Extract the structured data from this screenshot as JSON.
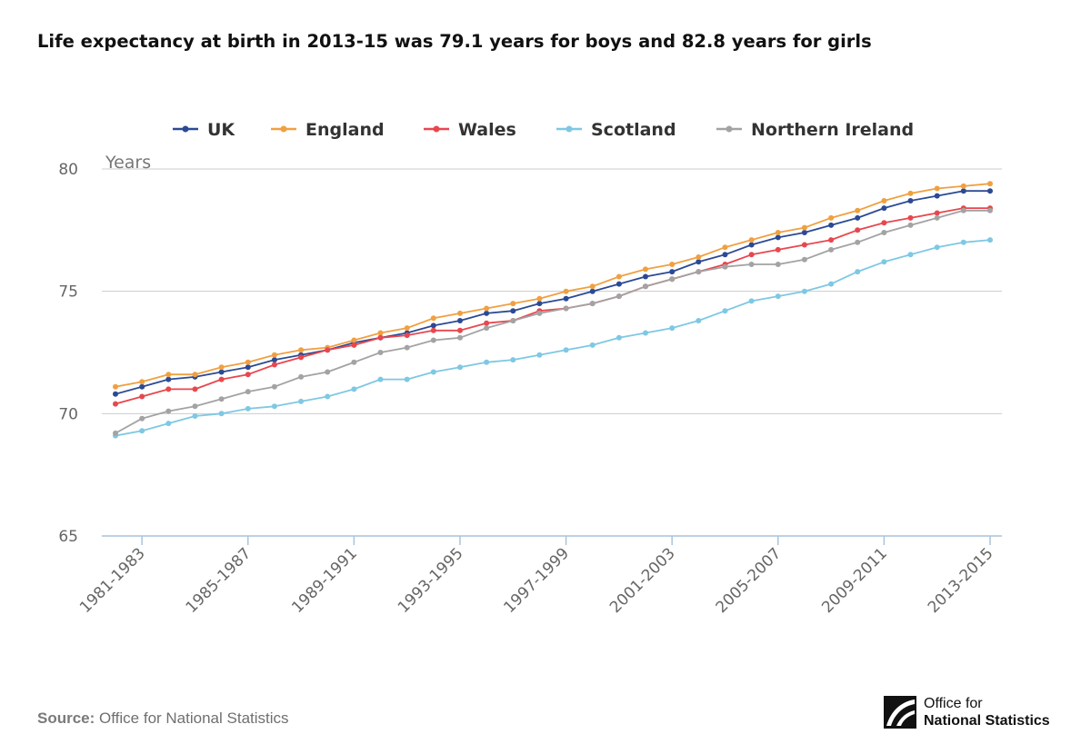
{
  "title": "Life expectancy at birth in 2013-15 was 79.1 years for boys and 82.8 years for girls",
  "source": {
    "label": "Source:",
    "text": "Office for National Statistics"
  },
  "logo": {
    "line1": "Office for",
    "line2": "National Statistics",
    "icon": "ons-logo-icon"
  },
  "chart_data": {
    "type": "line",
    "title": "",
    "xlabel": "",
    "ylabel": "Years",
    "ylim": [
      65,
      80
    ],
    "yticks": [
      65,
      70,
      75,
      80
    ],
    "grid": "horizontal",
    "legend_position": "top",
    "x": [
      "1980-1982",
      "1981-1983",
      "1982-1984",
      "1983-1985",
      "1984-1986",
      "1985-1987",
      "1986-1988",
      "1987-1989",
      "1988-1990",
      "1989-1991",
      "1990-1992",
      "1991-1993",
      "1992-1994",
      "1993-1995",
      "1994-1996",
      "1995-1997",
      "1996-1998",
      "1997-1999",
      "1998-2000",
      "1999-2001",
      "2000-2002",
      "2001-2003",
      "2002-2004",
      "2003-2005",
      "2004-2006",
      "2005-2007",
      "2006-2008",
      "2007-2009",
      "2008-2010",
      "2009-2011",
      "2010-2012",
      "2011-2013",
      "2012-2014",
      "2013-2015"
    ],
    "xtick_labels": [
      "1981-1983",
      "1985-1987",
      "1989-1991",
      "1993-1995",
      "1997-1999",
      "2001-2003",
      "2005-2007",
      "2009-2011",
      "2013-2015"
    ],
    "series": [
      {
        "name": "UK",
        "color": "#2b4a95",
        "values": [
          70.8,
          71.1,
          71.4,
          71.5,
          71.7,
          71.9,
          72.2,
          72.4,
          72.6,
          72.9,
          73.1,
          73.3,
          73.6,
          73.8,
          74.1,
          74.2,
          74.5,
          74.7,
          75.0,
          75.3,
          75.6,
          75.8,
          76.2,
          76.5,
          76.9,
          77.2,
          77.4,
          77.7,
          78.0,
          78.4,
          78.7,
          78.9,
          79.1,
          79.1
        ]
      },
      {
        "name": "England",
        "color": "#f0a040",
        "values": [
          71.1,
          71.3,
          71.6,
          71.6,
          71.9,
          72.1,
          72.4,
          72.6,
          72.7,
          73.0,
          73.3,
          73.5,
          73.9,
          74.1,
          74.3,
          74.5,
          74.7,
          75.0,
          75.2,
          75.6,
          75.9,
          76.1,
          76.4,
          76.8,
          77.1,
          77.4,
          77.6,
          78.0,
          78.3,
          78.7,
          79.0,
          79.2,
          79.3,
          79.4
        ]
      },
      {
        "name": "Wales",
        "color": "#e8474e",
        "values": [
          70.4,
          70.7,
          71.0,
          71.0,
          71.4,
          71.6,
          72.0,
          72.3,
          72.6,
          72.8,
          73.1,
          73.2,
          73.4,
          73.4,
          73.7,
          73.8,
          74.2,
          74.3,
          74.5,
          74.8,
          75.2,
          75.5,
          75.8,
          76.1,
          76.5,
          76.7,
          76.9,
          77.1,
          77.5,
          77.8,
          78.0,
          78.2,
          78.4,
          78.4
        ]
      },
      {
        "name": "Scotland",
        "color": "#7ec8e3",
        "values": [
          69.1,
          69.3,
          69.6,
          69.9,
          70.0,
          70.2,
          70.3,
          70.5,
          70.7,
          71.0,
          71.4,
          71.4,
          71.7,
          71.9,
          72.1,
          72.2,
          72.4,
          72.6,
          72.8,
          73.1,
          73.3,
          73.5,
          73.8,
          74.2,
          74.6,
          74.8,
          75.0,
          75.3,
          75.8,
          76.2,
          76.5,
          76.8,
          77.0,
          77.1
        ]
      },
      {
        "name": "Northern Ireland",
        "color": "#a3a3a3",
        "values": [
          69.2,
          69.8,
          70.1,
          70.3,
          70.6,
          70.9,
          71.1,
          71.5,
          71.7,
          72.1,
          72.5,
          72.7,
          73.0,
          73.1,
          73.5,
          73.8,
          74.1,
          74.3,
          74.5,
          74.8,
          75.2,
          75.5,
          75.8,
          76.0,
          76.1,
          76.1,
          76.3,
          76.7,
          77.0,
          77.4,
          77.7,
          78.0,
          78.3,
          78.3
        ]
      }
    ]
  }
}
